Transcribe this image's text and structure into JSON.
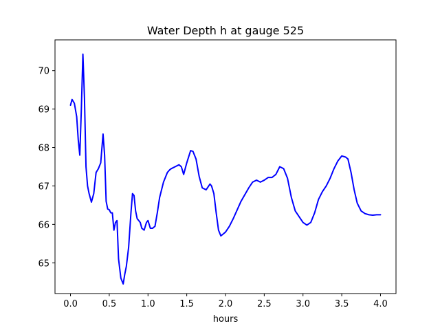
{
  "chart_data": {
    "type": "line",
    "title": "Water Depth h at gauge 525",
    "xlabel": "hours",
    "ylabel": "",
    "xlim": [
      -0.2,
      4.2
    ],
    "ylim": [
      64.2,
      70.8
    ],
    "xticks": [
      0.0,
      0.5,
      1.0,
      1.5,
      2.0,
      2.5,
      3.0,
      3.5,
      4.0
    ],
    "xtick_labels": [
      "0.0",
      "0.5",
      "1.0",
      "1.5",
      "2.0",
      "2.5",
      "3.0",
      "3.5",
      "4.0"
    ],
    "yticks": [
      65,
      66,
      67,
      68,
      69,
      70
    ],
    "ytick_labels": [
      "65",
      "66",
      "67",
      "68",
      "69",
      "70"
    ],
    "grid": false,
    "series": [
      {
        "color": "#0000ff",
        "x": [
          0.0,
          0.02,
          0.05,
          0.08,
          0.1,
          0.12,
          0.14,
          0.16,
          0.18,
          0.2,
          0.22,
          0.24,
          0.27,
          0.3,
          0.33,
          0.36,
          0.39,
          0.42,
          0.44,
          0.46,
          0.48,
          0.5,
          0.52,
          0.54,
          0.56,
          0.58,
          0.6,
          0.62,
          0.65,
          0.68,
          0.7,
          0.72,
          0.75,
          0.78,
          0.8,
          0.82,
          0.84,
          0.86,
          0.88,
          0.9,
          0.92,
          0.95,
          0.98,
          1.0,
          1.03,
          1.06,
          1.09,
          1.12,
          1.15,
          1.2,
          1.25,
          1.28,
          1.3,
          1.35,
          1.4,
          1.43,
          1.46,
          1.5,
          1.55,
          1.58,
          1.62,
          1.66,
          1.7,
          1.75,
          1.8,
          1.82,
          1.85,
          1.88,
          1.91,
          1.94,
          1.97,
          2.0,
          2.05,
          2.1,
          2.2,
          2.3,
          2.35,
          2.4,
          2.45,
          2.5,
          2.55,
          2.6,
          2.65,
          2.7,
          2.75,
          2.8,
          2.85,
          2.9,
          2.95,
          3.0,
          3.05,
          3.1,
          3.15,
          3.2,
          3.25,
          3.3,
          3.35,
          3.4,
          3.45,
          3.5,
          3.55,
          3.58,
          3.62,
          3.66,
          3.7,
          3.75,
          3.8,
          3.85,
          3.9,
          3.95,
          4.0
        ],
        "y": [
          69.1,
          69.25,
          69.15,
          68.8,
          68.2,
          67.8,
          69.0,
          70.43,
          69.3,
          67.5,
          67.0,
          66.8,
          66.58,
          66.8,
          67.35,
          67.45,
          67.6,
          68.35,
          67.8,
          66.6,
          66.4,
          66.38,
          66.3,
          66.3,
          65.85,
          66.05,
          66.1,
          65.1,
          64.6,
          64.45,
          64.7,
          64.9,
          65.4,
          66.3,
          66.8,
          66.75,
          66.35,
          66.15,
          66.1,
          66.05,
          65.9,
          65.85,
          66.05,
          66.1,
          65.9,
          65.9,
          65.95,
          66.3,
          66.7,
          67.1,
          67.35,
          67.42,
          67.45,
          67.5,
          67.55,
          67.5,
          67.3,
          67.6,
          67.92,
          67.9,
          67.7,
          67.25,
          66.95,
          66.9,
          67.05,
          67.0,
          66.8,
          66.3,
          65.85,
          65.7,
          65.75,
          65.8,
          65.95,
          66.15,
          66.6,
          66.95,
          67.1,
          67.15,
          67.1,
          67.15,
          67.22,
          67.22,
          67.3,
          67.5,
          67.45,
          67.2,
          66.7,
          66.35,
          66.2,
          66.05,
          65.98,
          66.05,
          66.3,
          66.65,
          66.85,
          67.0,
          67.2,
          67.45,
          67.65,
          67.78,
          67.75,
          67.7,
          67.35,
          66.9,
          66.55,
          66.35,
          66.28,
          66.25,
          66.24,
          66.25,
          66.25
        ]
      }
    ]
  }
}
